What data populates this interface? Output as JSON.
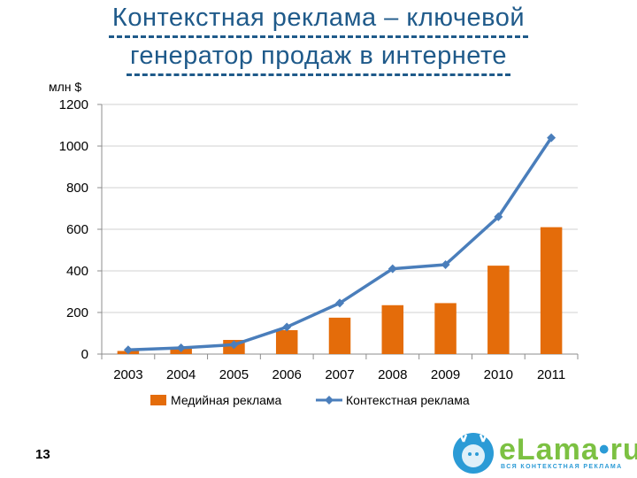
{
  "slide": {
    "title_line1": "Контекстная реклама – ключевой",
    "title_line2": "генератор продаж в интернете",
    "page_number": "13"
  },
  "logo": {
    "brand_main": "eLama",
    "brand_dot": "•",
    "brand_tld": "ru",
    "tagline": "ВСЯ КОНТЕКСТНАЯ РЕКЛАМА",
    "colors": {
      "green": "#7cc142",
      "blue": "#2b9bd6"
    }
  },
  "chart_data": {
    "type": "bar",
    "ylabel": "млн $",
    "ylim": [
      0,
      1200
    ],
    "yticks": [
      0,
      200,
      400,
      600,
      800,
      1000,
      1200
    ],
    "grid": true,
    "legend_position": "bottom",
    "categories": [
      "2003",
      "2004",
      "2005",
      "2006",
      "2007",
      "2008",
      "2009",
      "2010",
      "2011"
    ],
    "series": [
      {
        "name": "Медийная реклама",
        "type": "bar",
        "color": "#e46c0a",
        "values": [
          15,
          27,
          68,
          115,
          175,
          235,
          245,
          425,
          610
        ]
      },
      {
        "name": "Контекстная реклама",
        "type": "line",
        "color": "#4a7ebb",
        "values": [
          20,
          30,
          45,
          130,
          245,
          410,
          430,
          660,
          1040
        ]
      }
    ]
  }
}
